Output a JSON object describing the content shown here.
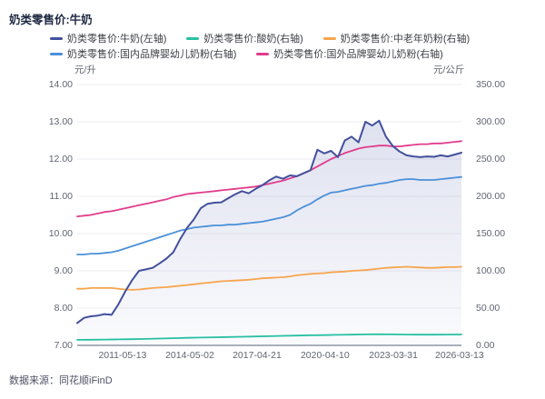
{
  "page": {
    "source_label": "数据来源：同花顺iFinD"
  },
  "colors": {
    "title_text": "#1e2742",
    "legend_text": "#3d3f45",
    "axis_text": "#5f6570",
    "grid_line": "#ededf2",
    "axis_line": "#a9b1bb",
    "source_text": "#4f5166",
    "area_fill": "#6b77b8"
  },
  "chart_data": {
    "type": "line",
    "title": "奶类零售价:牛奶",
    "grid": true,
    "legend_position": "top",
    "left_axis": {
      "unit": "元/升",
      "min": 7,
      "max": 14,
      "ticks": [
        "14.00",
        "13.00",
        "12.00",
        "11.00",
        "10.00",
        "9.00",
        "8.00",
        "7.00"
      ]
    },
    "right_axis": {
      "unit": "元/公斤",
      "min": 0,
      "max": 350,
      "ticks": [
        "350.00",
        "300.00",
        "250.00",
        "200.00",
        "150.00",
        "100.00",
        "50.00",
        "0.00"
      ]
    },
    "x_axis": {
      "labels": [
        "2011-05-13",
        "2014-05-02",
        "2017-04-21",
        "2020-04-10",
        "2023-03-31",
        "2026-03-13"
      ],
      "positions": [
        0.118,
        0.293,
        0.468,
        0.645,
        0.823,
        0.995
      ]
    },
    "series": [
      {
        "id": "yogurt",
        "label": "奶类零售价:酸奶(右轴)",
        "axis": "right",
        "color": "#27c0a2",
        "legend_row": 0,
        "area": false,
        "values": [
          7.5,
          7.6,
          7.8,
          8.0,
          8.3,
          8.7,
          9.1,
          9.6,
          10.1,
          10.5,
          10.9,
          11.2,
          11.6,
          11.9,
          12.3,
          12.8,
          13.2,
          13.5,
          13.8,
          14.1,
          14.4,
          14.8,
          14.9,
          14.7,
          14.5,
          14.4,
          14.4,
          14.5,
          14.6
        ]
      },
      {
        "id": "elderly_powder",
        "label": "奶类零售价:中老年奶粉(右轴)",
        "axis": "right",
        "color": "#f7a44e",
        "legend_row": 0,
        "area": false,
        "values": [
          76,
          76,
          77,
          77,
          77,
          77,
          76,
          75,
          74.5,
          75,
          76,
          77,
          77.5,
          78,
          79,
          80,
          81,
          82,
          83,
          84,
          85,
          86,
          86.5,
          87,
          87.5,
          88,
          89,
          90,
          90.5,
          91,
          91.5,
          92.5,
          94,
          95,
          96,
          96.5,
          97,
          98,
          98.5,
          99,
          100,
          100.5,
          101,
          102,
          103,
          104,
          104.5,
          105,
          105.5,
          105,
          104.5,
          104,
          104,
          104.5,
          105,
          105,
          105.5
        ]
      },
      {
        "id": "domestic_infant_formula",
        "label": "奶类零售价:国内品牌婴幼儿奶粉(右轴)",
        "axis": "right",
        "color": "#4b90d9",
        "legend_row": 1,
        "area": false,
        "values": [
          122,
          122,
          123,
          123,
          124,
          125,
          127,
          130,
          133,
          136,
          139,
          142,
          145,
          148,
          151,
          154,
          156,
          158,
          159,
          160,
          161,
          161,
          162,
          162,
          163,
          164,
          165,
          166,
          168,
          170,
          172,
          175,
          181,
          186,
          190,
          196,
          201,
          205,
          206,
          208,
          210,
          212,
          214,
          215,
          217,
          218,
          220,
          222,
          223,
          223,
          222,
          222,
          222,
          223,
          224,
          225,
          226
        ]
      },
      {
        "id": "foreign_infant_formula",
        "label": "奶类零售价:国外品牌婴幼儿奶粉(右轴)",
        "axis": "right",
        "color": "#e13c8c",
        "legend_row": 1,
        "area": false,
        "values": [
          173,
          174,
          175,
          177,
          179,
          180,
          182,
          184,
          186,
          188,
          190,
          192,
          194,
          196,
          199,
          201,
          203,
          204,
          205,
          206,
          207,
          208,
          209,
          210,
          211,
          212,
          213,
          215,
          217,
          219,
          221,
          224,
          227,
          231,
          235,
          240,
          245,
          250,
          254,
          258,
          261,
          264,
          266,
          267,
          268,
          268,
          267,
          267,
          268,
          269,
          270,
          270,
          271,
          271,
          272,
          273,
          274
        ]
      },
      {
        "id": "milk",
        "label": "奶类零售价:牛奶(左轴)",
        "axis": "left",
        "color": "#42509c",
        "legend_row": 0,
        "area": true,
        "values": [
          7.6,
          7.74,
          7.78,
          7.8,
          7.84,
          7.82,
          8.1,
          8.45,
          8.75,
          9.0,
          9.04,
          9.08,
          9.2,
          9.33,
          9.5,
          9.85,
          10.15,
          10.38,
          10.68,
          10.8,
          10.83,
          10.84,
          10.95,
          11.05,
          11.14,
          11.08,
          11.2,
          11.3,
          11.43,
          11.53,
          11.47,
          11.56,
          11.54,
          11.62,
          11.7,
          12.25,
          12.15,
          12.22,
          12.05,
          12.5,
          12.6,
          12.45,
          13.0,
          12.9,
          13.03,
          12.6,
          12.35,
          12.2,
          12.1,
          12.07,
          12.05,
          12.07,
          12.06,
          12.1,
          12.07,
          12.12,
          12.17
        ]
      }
    ]
  }
}
